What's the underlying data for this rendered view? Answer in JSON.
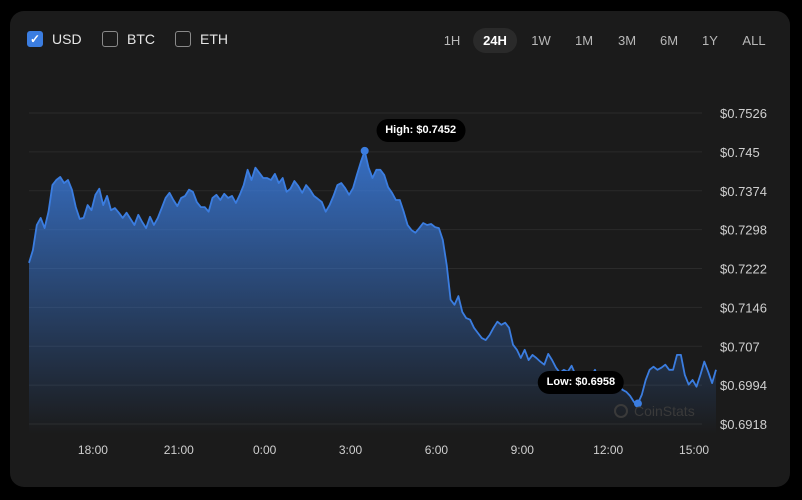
{
  "currencies": [
    {
      "label": "USD",
      "checked": true
    },
    {
      "label": "BTC",
      "checked": false
    },
    {
      "label": "ETH",
      "checked": false
    }
  ],
  "timeframes": [
    {
      "label": "1H"
    },
    {
      "label": "24H",
      "active": true
    },
    {
      "label": "1W"
    },
    {
      "label": "1M"
    },
    {
      "label": "3M"
    },
    {
      "label": "6M"
    },
    {
      "label": "1Y"
    },
    {
      "label": "ALL"
    }
  ],
  "watermark": "CoinStats",
  "colors": {
    "line": "#3b7de0",
    "accent": "#3b7de0",
    "background": "#1b1b1b"
  },
  "chart_data": {
    "type": "area",
    "x_range": [
      "15:46",
      "15:46"
    ],
    "ylim": [
      0.6918,
      0.7526
    ],
    "y_ticks": [
      "$0.7526",
      "$0.745",
      "$0.7374",
      "$0.7298",
      "$0.7222",
      "$0.7146",
      "$0.707",
      "$0.6994",
      "$0.6918"
    ],
    "y_tick_values": [
      0.7526,
      0.745,
      0.7374,
      0.7298,
      0.7222,
      0.7146,
      0.707,
      0.6994,
      0.6918
    ],
    "x_ticks": [
      "18:00",
      "21:00",
      "0:00",
      "3:00",
      "6:00",
      "9:00",
      "12:00",
      "15:00"
    ],
    "grid": true,
    "high": {
      "label": "High: $0.7452",
      "value": 0.7452
    },
    "low": {
      "label": "Low: $0.6958",
      "value": 0.6958
    },
    "values": [
      0.7233,
      0.7258,
      0.7307,
      0.7321,
      0.7301,
      0.7333,
      0.7385,
      0.7395,
      0.7401,
      0.7389,
      0.7395,
      0.7376,
      0.7342,
      0.7319,
      0.7321,
      0.7346,
      0.7336,
      0.7366,
      0.7378,
      0.7346,
      0.7364,
      0.7336,
      0.734,
      0.7331,
      0.7321,
      0.7331,
      0.7319,
      0.7307,
      0.7327,
      0.7313,
      0.7301,
      0.7323,
      0.7307,
      0.7321,
      0.734,
      0.736,
      0.737,
      0.7356,
      0.7344,
      0.736,
      0.7364,
      0.7376,
      0.7372,
      0.7352,
      0.7342,
      0.7342,
      0.7333,
      0.736,
      0.7366,
      0.7356,
      0.7368,
      0.736,
      0.7364,
      0.735,
      0.7366,
      0.7385,
      0.7415,
      0.7395,
      0.7419,
      0.7409,
      0.7399,
      0.7399,
      0.7395,
      0.7407,
      0.7389,
      0.7399,
      0.7372,
      0.7378,
      0.7393,
      0.7383,
      0.737,
      0.7385,
      0.7376,
      0.7364,
      0.7358,
      0.7352,
      0.7333,
      0.7346,
      0.7364,
      0.7385,
      0.7389,
      0.7379,
      0.7366,
      0.7379,
      0.7405,
      0.743,
      0.7452,
      0.7419,
      0.7399,
      0.7415,
      0.7415,
      0.7405,
      0.7381,
      0.737,
      0.7356,
      0.7356,
      0.7333,
      0.7307,
      0.7297,
      0.7292,
      0.7301,
      0.7311,
      0.7307,
      0.7309,
      0.7303,
      0.7301,
      0.7278,
      0.7229,
      0.7161,
      0.7151,
      0.7168,
      0.7137,
      0.7125,
      0.7122,
      0.7106,
      0.7096,
      0.7086,
      0.7082,
      0.7092,
      0.7106,
      0.7118,
      0.7112,
      0.7116,
      0.7106,
      0.7073,
      0.7063,
      0.7047,
      0.7063,
      0.7043,
      0.7053,
      0.7047,
      0.704,
      0.7034,
      0.7055,
      0.7043,
      0.7028,
      0.7018,
      0.7024,
      0.702,
      0.7032,
      0.7014,
      0.7004,
      0.7,
      0.7014,
      0.701,
      0.7024,
      0.6997,
      0.6995,
      0.7,
      0.7008,
      0.6995,
      0.6995,
      0.6985,
      0.6981,
      0.6973,
      0.6961,
      0.6958,
      0.6975,
      0.7004,
      0.7024,
      0.703,
      0.7024,
      0.7028,
      0.7034,
      0.7024,
      0.7024,
      0.7053,
      0.7053,
      0.7014,
      0.6995,
      0.7004,
      0.6991,
      0.7014,
      0.704,
      0.702,
      0.6998,
      0.7024
    ]
  }
}
